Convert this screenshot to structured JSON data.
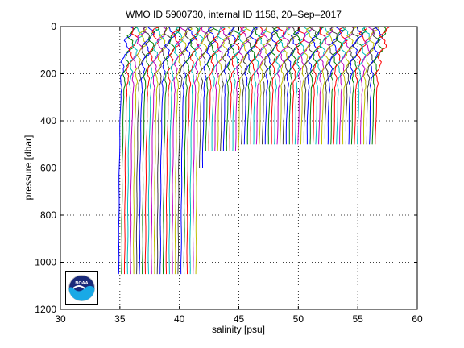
{
  "chart_data": {
    "type": "line",
    "title": "WMO ID 5900730, internal ID 1158, 20–Sep–2017",
    "xlabel": "salinity [psu]",
    "ylabel": "pressure [dbar]",
    "xlim": [
      30,
      60
    ],
    "ylim": [
      1200,
      0
    ],
    "y_reversed": true,
    "grid": true,
    "grid_style": "dotted",
    "x_ticks": [
      "30",
      "35",
      "40",
      "45",
      "50",
      "55",
      "60"
    ],
    "y_ticks": [
      "0",
      "200",
      "400",
      "600",
      "800",
      "1000",
      "1200"
    ],
    "series_colors": [
      "#0000ff",
      "#008000",
      "#ff0000",
      "#00bfbf",
      "#bf00bf",
      "#bfbf00",
      "#404040"
    ],
    "profile_count": 87,
    "profile_spacing_psu": 0.25,
    "first_profile_offset_psu": 0,
    "last_profile_offset_psu": 21.5,
    "base_profile": {
      "pressure": [
        0,
        50,
        100,
        150,
        200,
        300,
        400,
        500,
        600,
        700,
        800,
        900,
        1000,
        1050
      ],
      "salinity": [
        35.85,
        35.75,
        35.55,
        35.3,
        35.15,
        35.08,
        35.02,
        34.98,
        34.95,
        34.93,
        34.92,
        34.91,
        34.9,
        34.9
      ]
    },
    "profile_max_pressure": [
      {
        "from_offset": 0,
        "to_offset": 6.5,
        "max_pressure": 1050
      },
      {
        "from_offset": 6.75,
        "to_offset": 7.0,
        "max_pressure": 600
      },
      {
        "from_offset": 7.25,
        "to_offset": 10.0,
        "max_pressure": 530
      },
      {
        "from_offset": 10.25,
        "to_offset": 21.5,
        "max_pressure": 500
      }
    ]
  },
  "logo": {
    "name": "NOAA",
    "text": "NOAA",
    "colors": {
      "navy": "#1a2a7a",
      "light_blue": "#19a9e6",
      "white": "#ffffff"
    }
  }
}
